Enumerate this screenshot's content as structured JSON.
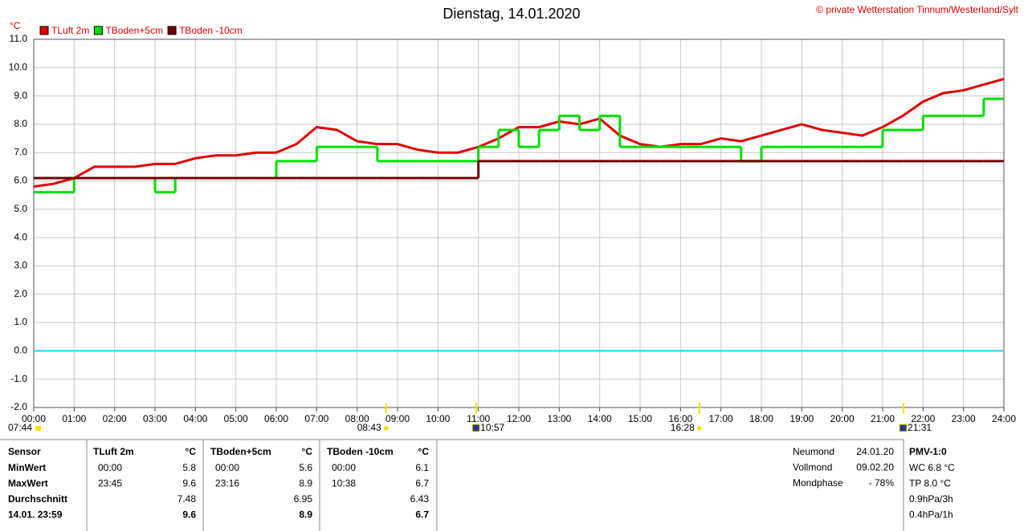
{
  "chart_data": {
    "type": "line",
    "title": "Dienstag, 14.01.2020",
    "copyright": "© private Wetterstation Tinnum/Westerland/Sylt",
    "y_unit": "°C",
    "xlim": [
      0,
      24
    ],
    "ylim": [
      -2,
      11
    ],
    "grid": true,
    "reference_line": {
      "value": 0,
      "color": "#00e0ff"
    },
    "xticks": [
      {
        "value": 0,
        "label": "00:00"
      },
      {
        "value": 1,
        "label": "01:00"
      },
      {
        "value": 2,
        "label": "02:00"
      },
      {
        "value": 3,
        "label": "03:00"
      },
      {
        "value": 4,
        "label": "04:00"
      },
      {
        "value": 5,
        "label": "05:00"
      },
      {
        "value": 6,
        "label": "06:00"
      },
      {
        "value": 7,
        "label": "07:00"
      },
      {
        "value": 8,
        "label": "08:00"
      },
      {
        "value": 9,
        "label": "09:00"
      },
      {
        "value": 10,
        "label": "10:00"
      },
      {
        "value": 11,
        "label": "11:00"
      },
      {
        "value": 12,
        "label": "12:00"
      },
      {
        "value": 13,
        "label": "13:00"
      },
      {
        "value": 14,
        "label": "14:00"
      },
      {
        "value": 15,
        "label": "15:00"
      },
      {
        "value": 16,
        "label": "16:00"
      },
      {
        "value": 17,
        "label": "17:00"
      },
      {
        "value": 18,
        "label": "18:00"
      },
      {
        "value": 19,
        "label": "19:00"
      },
      {
        "value": 20,
        "label": "20:00"
      },
      {
        "value": 21,
        "label": "21:00"
      },
      {
        "value": 22,
        "label": "22:00"
      },
      {
        "value": 23,
        "label": "23:00"
      },
      {
        "value": 24,
        "label": "24:00"
      }
    ],
    "yticks": [
      {
        "value": -2,
        "label": "-2.0"
      },
      {
        "value": -1,
        "label": "-1.0"
      },
      {
        "value": 0,
        "label": "0.0"
      },
      {
        "value": 1,
        "label": "1.0"
      },
      {
        "value": 2,
        "label": "2.0"
      },
      {
        "value": 3,
        "label": "3.0"
      },
      {
        "value": 4,
        "label": "4.0"
      },
      {
        "value": 5,
        "label": "5.0"
      },
      {
        "value": 6,
        "label": "6.0"
      },
      {
        "value": 7,
        "label": "7.0"
      },
      {
        "value": 8,
        "label": "8.0"
      },
      {
        "value": 9,
        "label": "9.0"
      },
      {
        "value": 10,
        "label": "10.0"
      },
      {
        "value": 11,
        "label": "11.0"
      }
    ],
    "x": [
      0,
      0.5,
      1,
      1.5,
      2,
      2.5,
      3,
      3.5,
      4,
      4.5,
      5,
      5.5,
      6,
      6.5,
      7,
      7.5,
      8,
      8.5,
      9,
      9.5,
      10,
      10.5,
      11,
      11.5,
      12,
      12.5,
      13,
      13.5,
      14,
      14.5,
      15,
      15.5,
      16,
      16.5,
      17,
      17.5,
      18,
      18.5,
      19,
      19.5,
      20,
      20.5,
      21,
      21.5,
      22,
      22.5,
      23,
      23.5,
      24
    ],
    "series": [
      {
        "name": "TLuft 2m",
        "color": "#e00000",
        "step": false,
        "values": [
          5.8,
          5.9,
          6.1,
          6.5,
          6.5,
          6.5,
          6.6,
          6.6,
          6.8,
          6.9,
          6.9,
          7.0,
          7.0,
          7.3,
          7.9,
          7.8,
          7.4,
          7.3,
          7.3,
          7.1,
          7.0,
          7.0,
          7.2,
          7.5,
          7.9,
          7.9,
          8.1,
          8.0,
          8.2,
          7.6,
          7.3,
          7.2,
          7.3,
          7.3,
          7.5,
          7.4,
          7.6,
          7.8,
          8.0,
          7.8,
          7.7,
          7.6,
          7.9,
          8.3,
          8.8,
          9.1,
          9.2,
          9.4,
          9.6
        ]
      },
      {
        "name": "TBoden+5cm",
        "color": "#00e000",
        "step": true,
        "values": [
          5.6,
          5.6,
          6.1,
          6.1,
          6.1,
          6.1,
          5.6,
          6.1,
          6.1,
          6.1,
          6.1,
          6.1,
          6.7,
          6.7,
          7.2,
          7.2,
          7.2,
          6.7,
          6.7,
          6.7,
          6.7,
          6.7,
          7.2,
          7.8,
          7.2,
          7.8,
          8.3,
          7.8,
          8.3,
          7.2,
          7.2,
          7.2,
          7.2,
          7.2,
          7.2,
          6.7,
          7.2,
          7.2,
          7.2,
          7.2,
          7.2,
          7.2,
          7.8,
          7.8,
          8.3,
          8.3,
          8.3,
          8.9,
          8.9
        ]
      },
      {
        "name": "TBoden -10cm",
        "color": "#700000",
        "step": true,
        "values": [
          6.1,
          6.1,
          6.1,
          6.1,
          6.1,
          6.1,
          6.1,
          6.1,
          6.1,
          6.1,
          6.1,
          6.1,
          6.1,
          6.1,
          6.1,
          6.1,
          6.1,
          6.1,
          6.1,
          6.1,
          6.1,
          6.1,
          6.7,
          6.7,
          6.7,
          6.7,
          6.7,
          6.7,
          6.7,
          6.7,
          6.7,
          6.7,
          6.7,
          6.7,
          6.7,
          6.7,
          6.7,
          6.7,
          6.7,
          6.7,
          6.7,
          6.7,
          6.7,
          6.7,
          6.7,
          6.7,
          6.7,
          6.7,
          6.7
        ]
      }
    ],
    "events": [
      {
        "label": "07:44",
        "icon": "moon"
      },
      {
        "label": "08:43",
        "x": 8.717,
        "icon": "sun"
      },
      {
        "label": "10:57",
        "x": 10.95,
        "icon": "moon"
      },
      {
        "label": "16:28",
        "x": 16.467,
        "icon": "sun"
      },
      {
        "label": "21:31",
        "x": 21.517,
        "icon": "moon"
      }
    ]
  },
  "table": {
    "header": [
      "Sensor",
      "TLuft 2m",
      "°C",
      "TBoden+5cm",
      "°C",
      "TBoden -10cm",
      "°C"
    ],
    "rows": [
      [
        "MinWert",
        "00:00",
        "5.8",
        "00:00",
        "5.6",
        "00:00",
        "6.1"
      ],
      [
        "MaxWert",
        "23:45",
        "9.6",
        "23:16",
        "8.9",
        "10:38",
        "6.7"
      ],
      [
        "Durchschnitt",
        null,
        "7.48",
        null,
        "6.95",
        null,
        "6.43"
      ],
      [
        "14.01. 23:59",
        null,
        "9.6",
        null,
        "8.9",
        null,
        "6.7"
      ]
    ]
  },
  "moon": [
    [
      "Neumond",
      "24.01.20"
    ],
    [
      "Vollmond",
      "09.02.20"
    ],
    [
      "Mondphase",
      "- 78%"
    ]
  ],
  "pmv": {
    "title": "PMV-1:0",
    "lines": [
      "WC 6.8 °C",
      "TP 8.0 °C",
      "0.9hPa/3h",
      "0.4hPa/1h"
    ]
  }
}
